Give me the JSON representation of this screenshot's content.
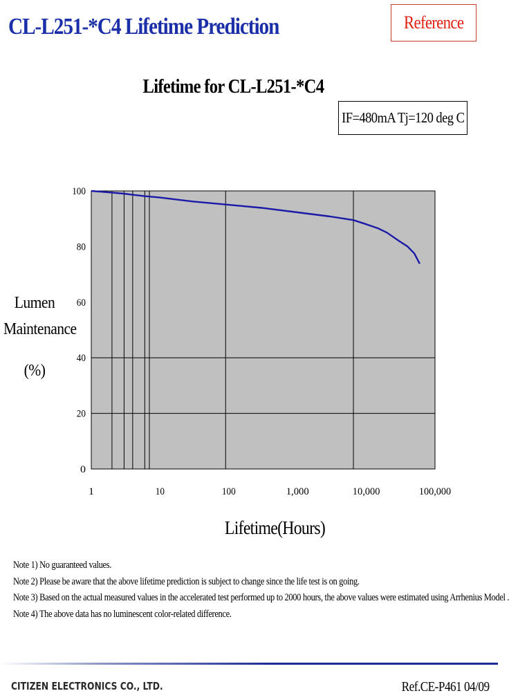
{
  "header": {
    "title": "CL-L251-*C4 Lifetime Prediction",
    "reference_label": "Reference"
  },
  "condition_label": "IF=480mA Tj=120 deg C",
  "ylabel_lines": [
    "Lumen",
    "Maintenance",
    "(%)"
  ],
  "chart_data": {
    "type": "line",
    "title": "Lifetime for CL-L251-*C4",
    "xlabel": "Lifetime(Hours)",
    "ylabel": "Lumen Maintenance (%)",
    "x_scale": "log",
    "xlim": [
      1,
      100000
    ],
    "ylim": [
      0,
      100
    ],
    "x_tick_labels": [
      "1",
      "10",
      "100",
      "1,000",
      "10,000",
      "100,000"
    ],
    "y_tick_labels": [
      "100",
      "80",
      "60",
      "40",
      "20",
      "0"
    ],
    "plot_background": "#c0c0c0",
    "line_color": "#1a1aa6",
    "vertical_gridlines_hours": [
      2,
      3,
      4,
      6,
      7,
      90,
      6500
    ],
    "horizontal_gridlines": [
      20,
      40
    ],
    "grid": true,
    "legend": "none",
    "series": [
      {
        "x": [
          1,
          2,
          3,
          4,
          6,
          10,
          30,
          100,
          300,
          1000,
          3000,
          6500,
          10000,
          15000,
          20000,
          30000,
          40000,
          50000,
          60000
        ],
        "y": [
          100,
          99.4,
          99.0,
          98.6,
          98.1,
          97.6,
          96.2,
          95.0,
          93.9,
          92.3,
          90.8,
          89.5,
          88.0,
          86.5,
          85.0,
          82.0,
          80.0,
          77.5,
          73.8
        ]
      }
    ]
  },
  "notes": [
    "Note 1) No guaranteed values.",
    "Note 2) Please be aware that the above lifetime prediction is subject to change since the life test is on going.",
    "Note 3) Based on the actual measured values in the accelerated test performed up to 2000 hours, the above values were estimated using Arrhenius Model .",
    "Note 4) The above data has no luminescent color-related difference."
  ],
  "footer": {
    "company": "CITIZEN ELECTRONICS CO., LTD.",
    "doc_ref": "Ref.CE-P461 04/09"
  }
}
